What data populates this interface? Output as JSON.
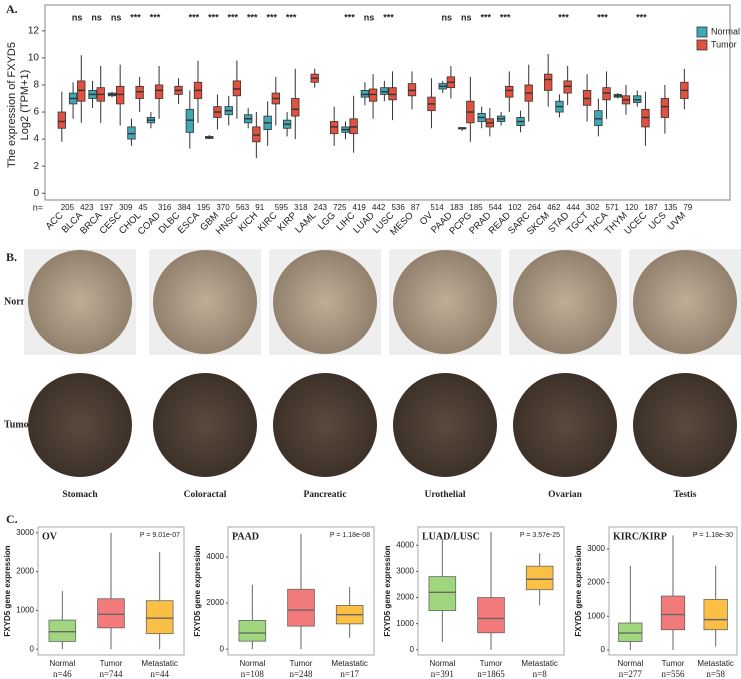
{
  "panel_labels": [
    "A.",
    "B.",
    "C."
  ],
  "chart_data": [
    {
      "type": "box",
      "ylabel": [
        "The expression of FXYD5",
        "Log2 (TPM+1)"
      ],
      "categories": [
        "ACC",
        "BLCA",
        "BRCA",
        "CESC",
        "CHOL",
        "COAD",
        "DLBC",
        "ESCA",
        "GBM",
        "HNSC",
        "KICH",
        "KIRC",
        "KIRP",
        "LAML",
        "LGG",
        "LIHC",
        "LUAD",
        "LUSC",
        "MESO",
        "OV",
        "PAAD",
        "PCPG",
        "PRAD",
        "READ",
        "SARC",
        "SKCM",
        "STAD",
        "TGCT",
        "THCA",
        "THYM",
        "UCEC",
        "UCS",
        "UVM"
      ],
      "n_prefix": "n=",
      "counts": [
        205,
        423,
        197,
        309,
        45,
        316,
        384,
        195,
        370,
        563,
        91,
        595,
        318,
        243,
        725,
        419,
        442,
        536,
        87,
        514,
        183,
        185,
        544,
        102,
        264,
        462,
        444,
        302,
        571,
        120,
        187,
        135,
        79
      ],
      "significance": [
        null,
        "ns",
        "ns",
        "ns",
        "***",
        "***",
        null,
        "***",
        "***",
        "***",
        "***",
        "***",
        "***",
        null,
        null,
        "***",
        "ns",
        "***",
        null,
        null,
        "ns",
        "ns",
        "***",
        "***",
        null,
        null,
        "***",
        null,
        "***",
        null,
        "***",
        null,
        null
      ],
      "series": [
        {
          "name": "Normal",
          "color": "#3fa7b5",
          "values": [
            null,
            [
              5.5,
              6.6,
              7.0,
              7.4,
              8.2
            ],
            [
              6.3,
              7.0,
              7.3,
              7.6,
              8.3
            ],
            [
              7.1,
              7.2,
              7.3,
              7.4,
              7.5
            ],
            [
              3.5,
              4.0,
              4.4,
              4.9,
              5.5
            ],
            [
              4.8,
              5.2,
              5.4,
              5.6,
              6.0
            ],
            null,
            [
              3.3,
              4.5,
              5.4,
              6.2,
              7.6
            ],
            [
              4.0,
              4.05,
              4.1,
              4.2,
              4.3
            ],
            [
              5.0,
              5.8,
              6.1,
              6.4,
              7.2
            ],
            [
              4.8,
              5.2,
              5.5,
              5.8,
              6.3
            ],
            [
              3.5,
              4.7,
              5.2,
              5.7,
              6.8
            ],
            [
              4.2,
              4.8,
              5.1,
              5.4,
              6.0
            ],
            null,
            null,
            [
              4.0,
              4.5,
              4.7,
              4.9,
              5.3
            ],
            [
              6.5,
              7.1,
              7.3,
              7.6,
              8.2
            ],
            [
              6.8,
              7.3,
              7.5,
              7.8,
              8.3
            ],
            null,
            null,
            [
              7.4,
              7.7,
              7.9,
              8.1,
              8.3
            ],
            [
              4.6,
              4.75,
              4.8,
              4.85,
              4.9
            ],
            [
              4.8,
              5.3,
              5.6,
              5.9,
              6.4
            ],
            [
              5.0,
              5.3,
              5.5,
              5.7,
              6.0
            ],
            [
              4.5,
              5.0,
              5.3,
              5.6,
              6.1
            ],
            null,
            [
              5.6,
              6.0,
              6.4,
              6.8,
              7.3
            ],
            null,
            [
              4.2,
              5.0,
              5.5,
              6.1,
              7.0
            ],
            [
              7.0,
              7.1,
              7.2,
              7.3,
              7.4
            ],
            [
              6.4,
              6.7,
              6.9,
              7.2,
              7.6
            ],
            null,
            null
          ]
        },
        {
          "name": "Tumor",
          "color": "#e0523f",
          "values": [
            [
              3.8,
              4.8,
              5.3,
              6.0,
              7.5
            ],
            [
              5.2,
              6.8,
              7.6,
              8.3,
              10.2
            ],
            [
              5.2,
              6.8,
              7.3,
              7.8,
              9.4
            ],
            [
              5.0,
              6.6,
              7.3,
              7.9,
              9.5
            ],
            [
              6.0,
              7.0,
              7.5,
              7.9,
              8.6
            ],
            [
              5.5,
              7.0,
              7.6,
              8.0,
              9.4
            ],
            [
              6.6,
              7.3,
              7.6,
              7.9,
              8.5
            ],
            [
              5.2,
              7.0,
              7.6,
              8.2,
              9.8
            ],
            [
              4.7,
              5.6,
              6.0,
              6.4,
              7.3
            ],
            [
              5.5,
              7.2,
              7.7,
              8.3,
              9.8
            ],
            [
              2.6,
              3.8,
              4.3,
              4.9,
              6.0
            ],
            [
              5.0,
              6.6,
              7.0,
              7.4,
              8.6
            ],
            [
              4.0,
              5.7,
              6.2,
              7.0,
              9.2
            ],
            [
              7.8,
              8.2,
              8.5,
              8.8,
              9.2
            ],
            [
              3.5,
              4.4,
              4.9,
              5.3,
              6.4
            ],
            [
              3.0,
              4.4,
              4.9,
              5.5,
              7.2
            ],
            [
              5.5,
              6.8,
              7.3,
              7.7,
              8.8
            ],
            [
              5.4,
              6.9,
              7.3,
              7.8,
              9.0
            ],
            [
              6.2,
              7.2,
              7.6,
              8.1,
              9.0
            ],
            [
              4.8,
              6.1,
              6.6,
              7.1,
              8.5
            ],
            [
              7.0,
              7.8,
              8.2,
              8.6,
              9.4
            ],
            [
              3.8,
              5.2,
              6.0,
              6.8,
              8.6
            ],
            [
              4.2,
              4.9,
              5.2,
              5.5,
              6.3
            ],
            [
              6.0,
              7.1,
              7.6,
              7.9,
              9.0
            ],
            [
              5.3,
              6.8,
              7.4,
              8.0,
              9.5
            ],
            [
              6.4,
              7.6,
              8.4,
              8.8,
              10.3
            ],
            [
              6.5,
              7.4,
              7.9,
              8.3,
              9.4
            ],
            [
              5.3,
              6.5,
              7.0,
              7.6,
              8.8
            ],
            [
              5.5,
              6.9,
              7.4,
              7.8,
              9.0
            ],
            [
              5.8,
              6.6,
              6.9,
              7.2,
              8.0
            ],
            [
              3.5,
              4.9,
              5.6,
              6.2,
              7.5
            ],
            [
              4.4,
              5.6,
              6.4,
              7.0,
              8.0
            ],
            [
              6.2,
              7.0,
              7.6,
              8.2,
              9.2
            ]
          ]
        }
      ],
      "ylim": [
        -0.5,
        12.8
      ],
      "yticks": [
        0,
        2,
        4,
        6,
        8,
        10,
        12
      ],
      "legend": "right"
    },
    {
      "type": "box",
      "title": "OV",
      "annotation": "P = 9.01e-07",
      "ylabel": "FXYD5 gene expression",
      "categories": [
        "Normal",
        "Tumor",
        "Metastatic"
      ],
      "n_labels": [
        "n=46",
        "n=744",
        "n=44"
      ],
      "values": [
        [
          0,
          200,
          450,
          750,
          1500
        ],
        [
          0,
          550,
          900,
          1300,
          3000
        ],
        [
          0,
          400,
          800,
          1250,
          2500
        ]
      ],
      "colors": [
        "#9fd67e",
        "#f27a7a",
        "#fbbf45"
      ],
      "ylim": [
        -150,
        3150
      ],
      "yticks": [
        0,
        1000,
        2000,
        3000
      ]
    },
    {
      "type": "box",
      "title": "PAAD",
      "annotation": "P = 1.18e-08",
      "ylabel": "FXYD5 gene expression",
      "categories": [
        "Normal",
        "Tumor",
        "Metastatic"
      ],
      "n_labels": [
        "n=108",
        "n=248",
        "n=17"
      ],
      "values": [
        [
          0,
          350,
          700,
          1250,
          2800
        ],
        [
          0,
          1000,
          1700,
          2600,
          5000
        ],
        [
          500,
          1100,
          1500,
          1900,
          2700
        ]
      ],
      "colors": [
        "#9fd67e",
        "#f27a7a",
        "#fbbf45"
      ],
      "ylim": [
        -250,
        5300
      ],
      "yticks": [
        0,
        2000,
        4000
      ]
    },
    {
      "type": "box",
      "title": "LUAD/LUSC",
      "annotation": "P = 3.57e-25",
      "ylabel": "FXYD5 gene expression",
      "categories": [
        "Normal",
        "Tumor",
        "Metastatic"
      ],
      "n_labels": [
        "n=391",
        "n=1865",
        "n=8"
      ],
      "values": [
        [
          300,
          1500,
          2200,
          2800,
          4200
        ],
        [
          0,
          650,
          1200,
          2000,
          4500
        ],
        [
          1700,
          2300,
          2700,
          3200,
          3700
        ]
      ],
      "colors": [
        "#9fd67e",
        "#f27a7a",
        "#fbbf45"
      ],
      "ylim": [
        -200,
        4700
      ],
      "yticks": [
        0,
        1000,
        2000,
        3000,
        4000
      ]
    },
    {
      "type": "box",
      "title": "KIRC/KIRP",
      "annotation": "P = 1.18e-30",
      "ylabel": "FXYD5 gene expression",
      "categories": [
        "Normal",
        "Tumor",
        "Metastatic"
      ],
      "n_labels": [
        "n=277",
        "n=556",
        "n=58"
      ],
      "values": [
        [
          0,
          250,
          500,
          800,
          2500
        ],
        [
          0,
          600,
          1050,
          1600,
          3400
        ],
        [
          100,
          600,
          900,
          1500,
          2500
        ]
      ],
      "colors": [
        "#9fd67e",
        "#f27a7a",
        "#fbbf45"
      ],
      "ylim": [
        -150,
        3650
      ],
      "yticks": [
        0,
        1000,
        2000,
        3000
      ]
    }
  ],
  "tissue_panel": {
    "rows": [
      "Normal",
      "Tumor"
    ],
    "columns": [
      "Stomach",
      "Coloractal",
      "Pancreatic",
      "Urothelial",
      "Ovarian",
      "Testis"
    ]
  }
}
